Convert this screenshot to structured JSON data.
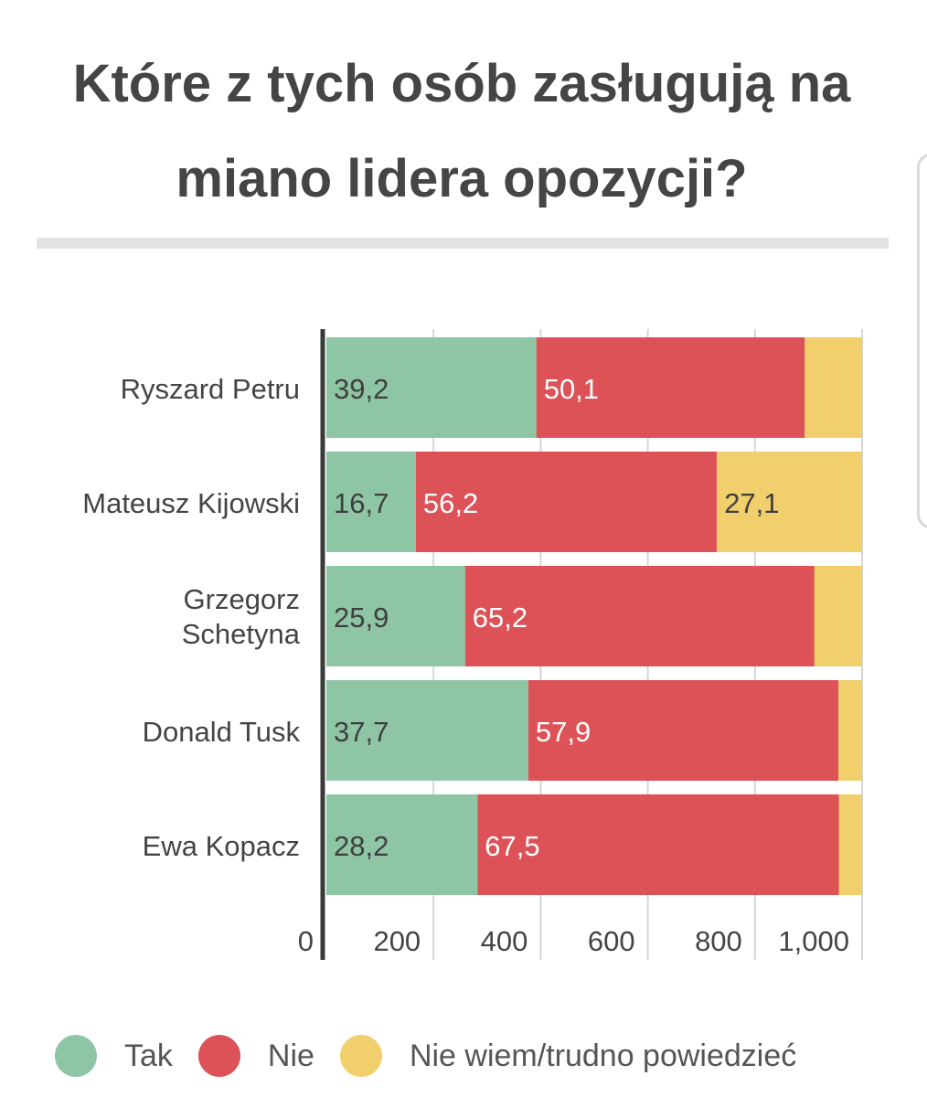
{
  "title": "Które z tych osób zasługują na miano lidera opozycji?",
  "colors": {
    "tak": "#8ec5a5",
    "nie": "#dc5257",
    "niewiem": "#f1cf6d"
  },
  "chart_data": {
    "type": "bar",
    "orientation": "horizontal",
    "stacked": true,
    "title": "Które z tych osób zasługują na miano lidera opozycji?",
    "xlabel": "",
    "ylabel": "",
    "xlim": [
      0,
      1000
    ],
    "xticks": [
      "0",
      "200",
      "400",
      "600",
      "800",
      "1,000"
    ],
    "grid": true,
    "legend_position": "bottom",
    "categories": [
      "Ryszard Petru",
      "Mateusz Kijowski",
      "Grzegorz Schetyna",
      "Donald Tusk",
      "Ewa Kopacz"
    ],
    "series": [
      {
        "name": "Tak",
        "values": [
          39.2,
          16.7,
          25.9,
          37.7,
          28.2
        ],
        "labels": [
          "39,2",
          "16,7",
          "25,9",
          "37,7",
          "28,2"
        ]
      },
      {
        "name": "Nie",
        "values": [
          50.1,
          56.2,
          65.2,
          57.9,
          67.5
        ],
        "labels": [
          "50,1",
          "56,2",
          "65,2",
          "57,9",
          "67,5"
        ]
      },
      {
        "name": "Nie wiem/trudno powiedzieć",
        "values": [
          10.7,
          27.1,
          8.9,
          4.4,
          4.3
        ],
        "labels": [
          "",
          "27,1",
          "",
          "",
          ""
        ]
      }
    ]
  },
  "legend": [
    {
      "label": "Tak",
      "color": "#8ec5a5"
    },
    {
      "label": "Nie",
      "color": "#dc5257"
    },
    {
      "label": "Nie wiem/trudno powiedzieć",
      "color": "#f1cf6d"
    }
  ]
}
